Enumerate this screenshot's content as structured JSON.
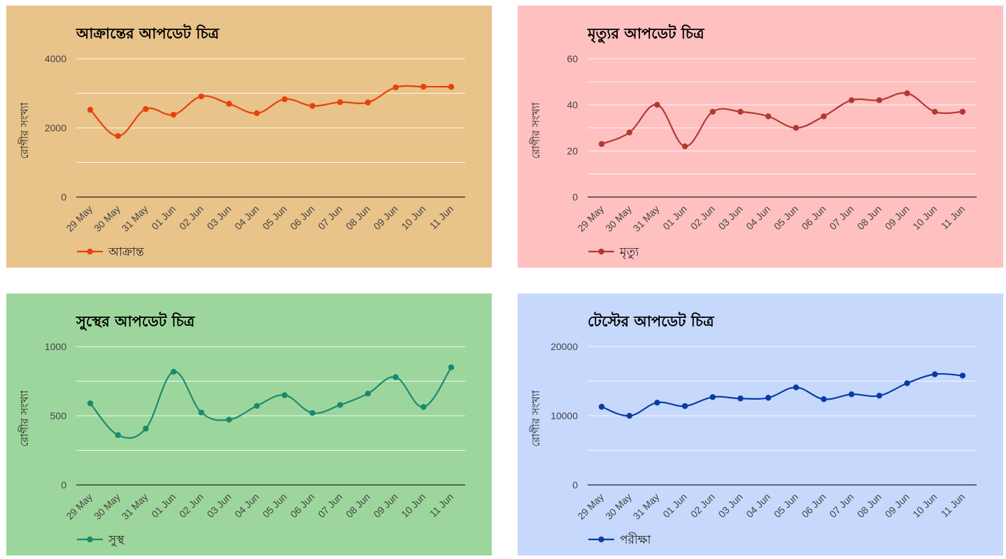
{
  "chart_data": [
    {
      "type": "line",
      "title": "আক্রান্তের আপডেট চিত্র",
      "ylabel": "রোগীর সংখ্যা",
      "xlabel": "",
      "ylim": [
        0,
        4000
      ],
      "yticks": [
        "0",
        "2000",
        "4000"
      ],
      "y_gridlines": [
        0,
        1000,
        2000,
        3000,
        4000
      ],
      "categories": [
        "29 May",
        "30 May",
        "31 May",
        "01 Jun",
        "02 Jun",
        "03 Jun",
        "04 Jun",
        "05 Jun",
        "06 Jun",
        "07 Jun",
        "08 Jun",
        "09 Jun",
        "10 Jun",
        "11 Jun"
      ],
      "series": [
        {
          "name": "আক্রান্ত",
          "color": "#e8410a",
          "values": [
            2523,
            1764,
            2545,
            2381,
            2911,
            2695,
            2423,
            2828,
            2635,
            2743,
            2735,
            3171,
            3190,
            3187
          ]
        }
      ],
      "background": "#e8c38a",
      "grid": true,
      "legend": "bottom-left"
    },
    {
      "type": "line",
      "title": "মৃত্যুর আপডেট চিত্র",
      "ylabel": "রোগীর সংখ্যা",
      "xlabel": "",
      "ylim": [
        0,
        60
      ],
      "yticks": [
        "0",
        "20",
        "40",
        "60"
      ],
      "y_gridlines": [
        0,
        10,
        20,
        30,
        40,
        50,
        60
      ],
      "categories": [
        "29 May",
        "30 May",
        "31 May",
        "01 Jun",
        "02 Jun",
        "03 Jun",
        "04 Jun",
        "05 Jun",
        "06 Jun",
        "07 Jun",
        "08 Jun",
        "09 Jun",
        "10 Jun",
        "11 Jun"
      ],
      "series": [
        {
          "name": "মৃত্যু",
          "color": "#b03a30",
          "values": [
            23,
            28,
            40,
            22,
            37,
            37,
            35,
            30,
            35,
            42,
            42,
            45,
            37,
            37
          ]
        }
      ],
      "background": "#ffc0c0",
      "grid": true,
      "legend": "bottom-left"
    },
    {
      "type": "line",
      "title": "সুস্থের আপডেট চিত্র",
      "ylabel": "রোগীর সংখ্যা",
      "xlabel": "",
      "ylim": [
        0,
        1000
      ],
      "yticks": [
        "0",
        "500",
        "1000"
      ],
      "y_gridlines": [
        0,
        250,
        500,
        750,
        1000
      ],
      "categories": [
        "29 May",
        "30 May",
        "31 May",
        "01 Jun",
        "02 Jun",
        "03 Jun",
        "04 Jun",
        "05 Jun",
        "06 Jun",
        "07 Jun",
        "08 Jun",
        "09 Jun",
        "10 Jun",
        "11 Jun"
      ],
      "series": [
        {
          "name": "সুস্থ",
          "color": "#1a8a6e",
          "values": [
            590,
            360,
            407,
            818,
            523,
            472,
            571,
            649,
            520,
            578,
            660,
            779,
            563,
            850
          ]
        }
      ],
      "background": "#9dd69c",
      "grid": true,
      "legend": "bottom-left"
    },
    {
      "type": "line",
      "title": "টেস্টের আপডেট চিত্র",
      "ylabel": "রোগীর সংখ্যা",
      "xlabel": "",
      "ylim": [
        0,
        20000
      ],
      "yticks": [
        "0",
        "10000",
        "20000"
      ],
      "y_gridlines": [
        0,
        5000,
        10000,
        15000,
        20000
      ],
      "categories": [
        "29 May",
        "30 May",
        "31 May",
        "01 Jun",
        "02 Jun",
        "03 Jun",
        "04 Jun",
        "05 Jun",
        "06 Jun",
        "07 Jun",
        "08 Jun",
        "09 Jun",
        "10 Jun",
        "11 Jun"
      ],
      "series": [
        {
          "name": "পরীক্ষা",
          "color": "#0a3ba6",
          "values": [
            11300,
            9987,
            11900,
            11400,
            12700,
            12500,
            12600,
            14100,
            12400,
            13100,
            12900,
            14700,
            16000,
            15800
          ]
        }
      ],
      "background": "#c6d8fc",
      "grid": true,
      "legend": "bottom-left"
    }
  ]
}
